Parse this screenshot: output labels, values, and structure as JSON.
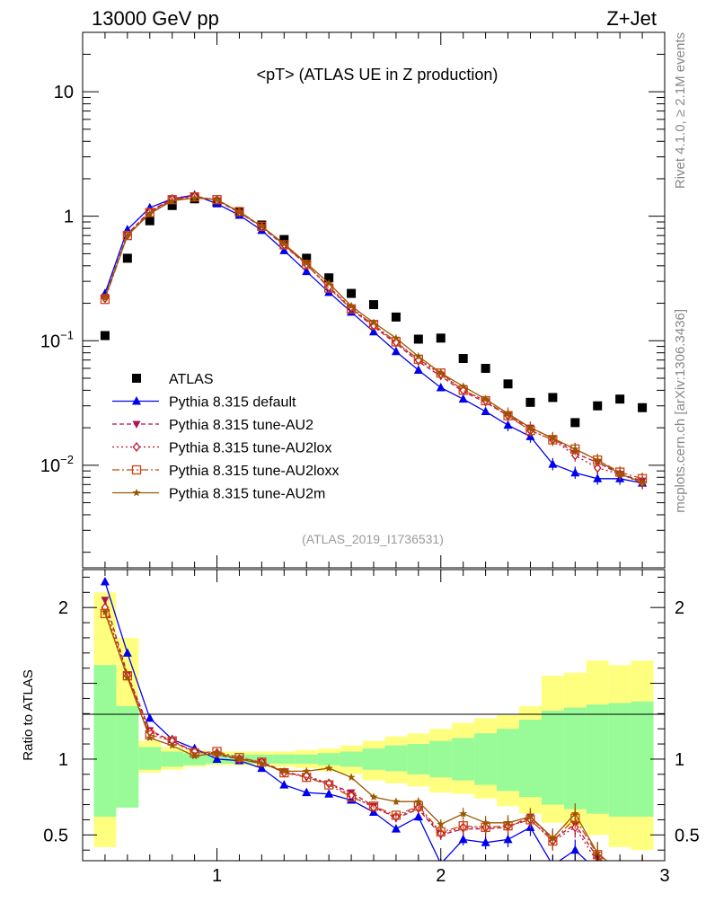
{
  "header": {
    "left": "13000 GeV pp",
    "right": "Z+Jet"
  },
  "side": {
    "rivet": "Rivet 4.1.0, ≥ 2.1M events",
    "mcplots": "mcplots.cern.ch [arXiv:1306.3436]"
  },
  "chart_data": [
    {
      "type": "scatter",
      "title": "<pT> (ATLAS UE in Z production)",
      "watermark": "(ATLAS_2019_I1736531)",
      "yscale": "log",
      "xlim": [
        0.4,
        3.0
      ],
      "ylim": [
        0.0015,
        30
      ],
      "x_tick_labels": [
        "1",
        "2",
        "3"
      ],
      "y_tick_labels": [
        "10",
        "1",
        "10^-1",
        "10^-2"
      ],
      "legend_position": "bottom-left",
      "x": [
        0.5,
        0.6,
        0.7,
        0.8,
        0.9,
        1.0,
        1.1,
        1.2,
        1.3,
        1.4,
        1.5,
        1.6,
        1.7,
        1.8,
        1.9,
        2.0,
        2.1,
        2.2,
        2.3,
        2.4,
        2.5,
        2.6,
        2.7,
        2.8,
        2.9
      ],
      "series": [
        {
          "name": "ATLAS",
          "color": "#000000",
          "marker": "square",
          "values": [
            0.11,
            0.46,
            0.92,
            1.22,
            1.38,
            1.3,
            1.08,
            0.85,
            0.65,
            0.46,
            0.32,
            0.24,
            0.195,
            0.155,
            0.103,
            0.105,
            0.072,
            0.06,
            0.045,
            0.032,
            0.035,
            0.022,
            0.03,
            0.034,
            0.029
          ]
        },
        {
          "name": "Pythia 8.315 default",
          "color": "#0000ee",
          "marker": "triangle",
          "dash": "",
          "values": [
            0.24,
            0.78,
            1.17,
            1.38,
            1.48,
            1.26,
            1.02,
            0.77,
            0.53,
            0.36,
            0.245,
            0.17,
            0.118,
            0.082,
            0.058,
            0.042,
            0.034,
            0.027,
            0.021,
            0.017,
            0.0102,
            0.0087,
            0.0078,
            0.0078,
            0.0072
          ]
        },
        {
          "name": "Pythia 8.315 tune-AU2",
          "color": "#b0124f",
          "marker": "tridown",
          "dash": "5,3",
          "values": [
            0.225,
            0.72,
            1.1,
            1.38,
            1.45,
            1.34,
            1.07,
            0.82,
            0.58,
            0.41,
            0.27,
            0.18,
            0.13,
            0.095,
            0.068,
            0.052,
            0.039,
            0.032,
            0.025,
            0.02,
            0.0165,
            0.0125,
            0.0105,
            0.0085,
            0.0075
          ]
        },
        {
          "name": "Pythia 8.315 tune-AU2lox",
          "color": "#c0102a",
          "marker": "diamond",
          "dash": "2,3",
          "values": [
            0.22,
            0.71,
            1.08,
            1.37,
            1.44,
            1.35,
            1.08,
            0.83,
            0.59,
            0.41,
            0.27,
            0.185,
            0.132,
            0.097,
            0.07,
            0.054,
            0.04,
            0.033,
            0.025,
            0.019,
            0.016,
            0.012,
            0.0095,
            0.0085,
            0.0072
          ]
        },
        {
          "name": "Pythia 8.315 tune-AU2loxx",
          "color": "#cc4412",
          "marker": "square-open",
          "dash": "8,3,2,3",
          "values": [
            0.215,
            0.7,
            1.07,
            1.36,
            1.43,
            1.36,
            1.09,
            0.83,
            0.59,
            0.41,
            0.265,
            0.18,
            0.135,
            0.098,
            0.071,
            0.055,
            0.04,
            0.033,
            0.025,
            0.019,
            0.016,
            0.0135,
            0.011,
            0.0088,
            0.0078
          ]
        },
        {
          "name": "Pythia 8.315 tune-AU2m",
          "color": "#9a5700",
          "marker": "star",
          "dash": "",
          "values": [
            0.22,
            0.7,
            1.05,
            1.33,
            1.4,
            1.36,
            1.08,
            0.83,
            0.6,
            0.42,
            0.29,
            0.19,
            0.14,
            0.105,
            0.075,
            0.055,
            0.043,
            0.034,
            0.026,
            0.02,
            0.0165,
            0.0135,
            0.011,
            0.0085,
            0.0073
          ]
        }
      ]
    },
    {
      "type": "line",
      "ylabel": "Ratio to ATLAS",
      "xlim": [
        0.4,
        3.0
      ],
      "ylim": [
        0.33,
        2.25
      ],
      "x_tick_labels": [
        "1",
        "2",
        "3"
      ],
      "y_tick_labels": [
        "2",
        "1",
        "0.5"
      ],
      "x": [
        0.5,
        0.6,
        0.7,
        0.8,
        0.9,
        1.0,
        1.1,
        1.2,
        1.3,
        1.4,
        1.5,
        1.6,
        1.7,
        1.8,
        1.9,
        2.0,
        2.1,
        2.2,
        2.3,
        2.4,
        2.5,
        2.6,
        2.7,
        2.8,
        2.9
      ],
      "bands": {
        "edges": [
          0.45,
          0.55,
          0.65,
          0.75,
          0.85,
          0.95,
          1.05,
          1.15,
          1.25,
          1.35,
          1.45,
          1.55,
          1.65,
          1.75,
          1.85,
          1.95,
          2.05,
          2.15,
          2.25,
          2.35,
          2.45,
          2.55,
          2.65,
          2.75,
          2.85,
          2.95
        ],
        "stat_lo": [
          0.42,
          0.79,
          0.91,
          0.93,
          0.95,
          0.96,
          0.96,
          0.96,
          0.95,
          0.94,
          0.92,
          0.9,
          0.86,
          0.84,
          0.82,
          0.78,
          0.77,
          0.74,
          0.69,
          0.64,
          0.58,
          0.55,
          0.5,
          0.42,
          0.4
        ],
        "stat_hi": [
          2.1,
          1.8,
          1.12,
          1.08,
          1.06,
          1.05,
          1.05,
          1.05,
          1.05,
          1.06,
          1.07,
          1.09,
          1.12,
          1.15,
          1.17,
          1.2,
          1.24,
          1.27,
          1.29,
          1.35,
          1.55,
          1.57,
          1.65,
          1.62,
          1.65
        ],
        "sys_lo": [
          0.62,
          0.68,
          0.93,
          0.95,
          0.96,
          0.97,
          0.97,
          0.97,
          0.97,
          0.97,
          0.96,
          0.95,
          0.93,
          0.92,
          0.9,
          0.88,
          0.86,
          0.83,
          0.79,
          0.75,
          0.7,
          0.67,
          0.64,
          0.62,
          0.62
        ],
        "sys_hi": [
          1.62,
          1.35,
          1.08,
          1.05,
          1.04,
          1.03,
          1.03,
          1.03,
          1.03,
          1.03,
          1.04,
          1.05,
          1.07,
          1.09,
          1.1,
          1.12,
          1.14,
          1.17,
          1.2,
          1.26,
          1.32,
          1.34,
          1.36,
          1.37,
          1.38
        ],
        "stat_color": "#ffff7f",
        "sys_color": "#98fb98"
      },
      "series": [
        {
          "name": "Pythia 8.315 default",
          "values": [
            2.17,
            1.7,
            1.27,
            1.13,
            1.07,
            1.0,
            0.99,
            0.94,
            0.83,
            0.78,
            0.77,
            0.73,
            0.65,
            0.54,
            0.62,
            0.31,
            0.47,
            0.45,
            0.47,
            0.55,
            0.3,
            0.4,
            0.26,
            0.24,
            0.25
          ]
        },
        {
          "name": "Pythia 8.315 tune-AU2",
          "values": [
            2.05,
            1.56,
            1.19,
            1.12,
            1.05,
            1.03,
            1.0,
            0.98,
            0.92,
            0.88,
            0.84,
            0.78,
            0.69,
            0.61,
            0.67,
            0.5,
            0.54,
            0.54,
            0.55,
            0.62,
            0.47,
            0.57,
            0.35,
            0.25,
            0.26
          ]
        },
        {
          "name": "Pythia 8.315 tune-AU2lox",
          "values": [
            2.0,
            1.55,
            1.18,
            1.12,
            1.05,
            1.04,
            1.0,
            0.98,
            0.91,
            0.89,
            0.84,
            0.76,
            0.68,
            0.62,
            0.68,
            0.51,
            0.55,
            0.55,
            0.56,
            0.6,
            0.46,
            0.55,
            0.32,
            0.25,
            0.25
          ]
        },
        {
          "name": "Pythia 8.315 tune-AU2loxx",
          "values": [
            1.96,
            1.55,
            1.16,
            1.12,
            1.04,
            1.05,
            1.01,
            0.98,
            0.91,
            0.88,
            0.83,
            0.75,
            0.69,
            0.63,
            0.69,
            0.52,
            0.56,
            0.55,
            0.56,
            0.6,
            0.46,
            0.61,
            0.37,
            0.26,
            0.27
          ]
        },
        {
          "name": "Pythia 8.315 tune-AU2m",
          "values": [
            1.97,
            1.54,
            1.14,
            1.09,
            1.02,
            1.04,
            1.0,
            0.97,
            0.92,
            0.92,
            0.94,
            0.88,
            0.75,
            0.72,
            0.72,
            0.57,
            0.64,
            0.58,
            0.58,
            0.62,
            0.48,
            0.64,
            0.38,
            0.26,
            0.28
          ]
        }
      ]
    }
  ]
}
